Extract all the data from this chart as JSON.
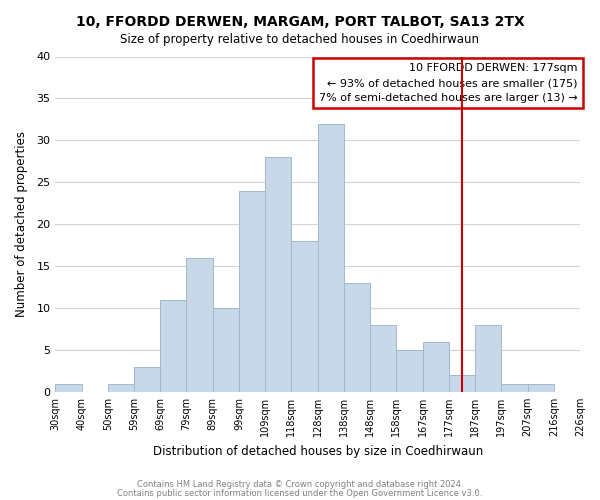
{
  "title": "10, FFORDD DERWEN, MARGAM, PORT TALBOT, SA13 2TX",
  "subtitle": "Size of property relative to detached houses in Coedhirwaun",
  "xlabel": "Distribution of detached houses by size in Coedhirwaun",
  "ylabel": "Number of detached properties",
  "footer_line1": "Contains HM Land Registry data © Crown copyright and database right 2024.",
  "footer_line2": "Contains public sector information licensed under the Open Government Licence v3.0.",
  "tick_labels": [
    "30sqm",
    "40sqm",
    "50sqm",
    "59sqm",
    "69sqm",
    "79sqm",
    "89sqm",
    "99sqm",
    "109sqm",
    "118sqm",
    "128sqm",
    "138sqm",
    "148sqm",
    "158sqm",
    "167sqm",
    "177sqm",
    "187sqm",
    "197sqm",
    "207sqm",
    "216sqm",
    "226sqm"
  ],
  "values": [
    1,
    0,
    1,
    3,
    11,
    16,
    10,
    24,
    28,
    18,
    32,
    13,
    8,
    5,
    6,
    2,
    8,
    1,
    1,
    0
  ],
  "bar_color": "#c8d8e8",
  "bar_edge_color": "#a0b8d0",
  "vline_x": 15,
  "vline_color": "#cc0000",
  "ylim": [
    0,
    40
  ],
  "yticks": [
    0,
    5,
    10,
    15,
    20,
    25,
    30,
    35,
    40
  ],
  "annotation_title": "10 FFORDD DERWEN: 177sqm",
  "annotation_line1": "← 93% of detached houses are smaller (175)",
  "annotation_line2": "7% of semi-detached houses are larger (13) →",
  "annotation_box_edge": "#cc0000"
}
